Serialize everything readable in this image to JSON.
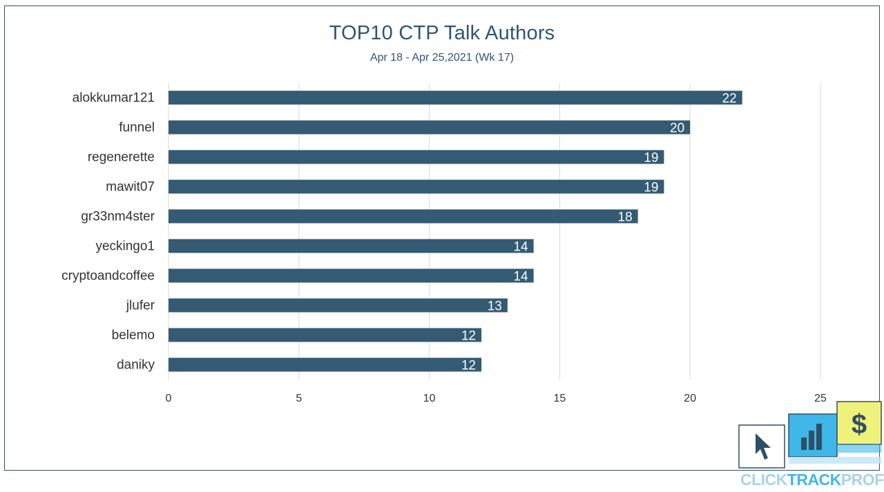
{
  "chart_data": {
    "type": "bar",
    "orientation": "horizontal",
    "title": "TOP10 CTP Talk Authors",
    "subtitle": "Apr 18 - Apr 25,2021 (Wk 17)",
    "categories": [
      "alokkumar121",
      "funnel",
      "regenerette",
      "mawit07",
      "gr33nm4ster",
      "yeckingo1",
      "cryptoandcoffee",
      "jlufer",
      "belemo",
      "daniky"
    ],
    "values": [
      22,
      20,
      19,
      19,
      18,
      14,
      14,
      13,
      12,
      12
    ],
    "xlim": [
      0,
      25
    ],
    "xticks": [
      0,
      5,
      10,
      15,
      20,
      25
    ],
    "grid": "vertical",
    "legend": "none",
    "data_labels": "inside-end",
    "colors": {
      "bar": "#345a74",
      "label_text": "#ffffff",
      "axis_text": "#333333",
      "grid": "#d9d9d9"
    }
  },
  "logo": {
    "text_click": "CLICK",
    "text_track": "TRACK",
    "text_profit": "PROFIT",
    "dollar": "$"
  }
}
